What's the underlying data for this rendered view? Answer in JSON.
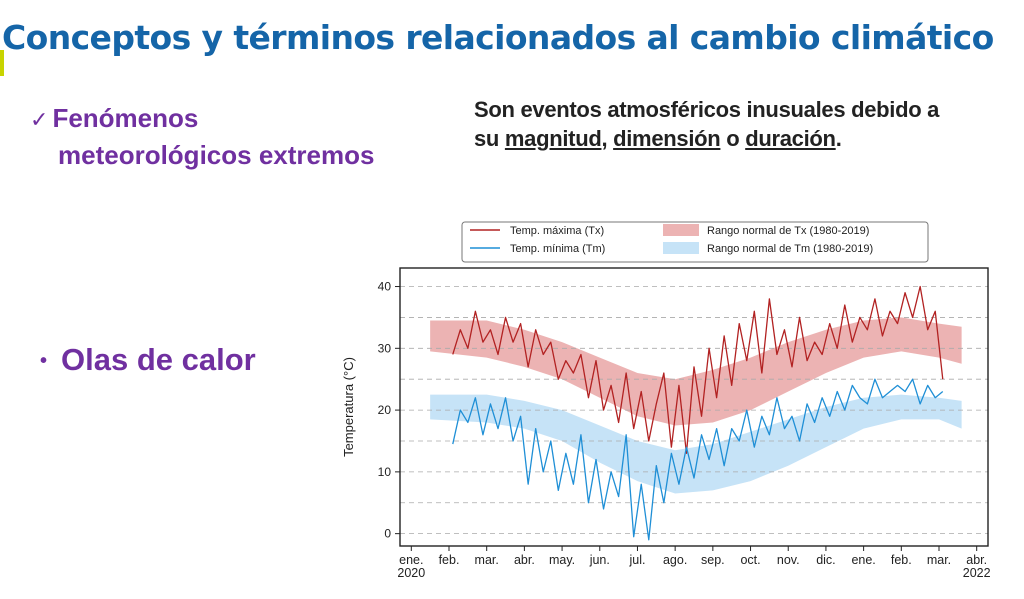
{
  "slide": {
    "title": "Conceptos y términos relacionados al cambio climático",
    "bullet1_check": "✓",
    "bullet1_line1": "Fenómenos",
    "bullet1_line2": "meteorológicos extremos",
    "definition_p1": "Son eventos atmosféricos inusuales debido a su ",
    "definition_w1": "magnitud",
    "definition_p2": ", ",
    "definition_w2": "dimensión",
    "definition_p3": " o ",
    "definition_w3": "duración",
    "definition_p4": ".",
    "bullet2_dot": "•",
    "bullet2": "Olas de calor"
  },
  "colors": {
    "title": "#1565a8",
    "bullet": "#7030a0",
    "tx_line": "#b22222",
    "tm_line": "#1f8fd6",
    "tx_band": "#ecb3b3",
    "tm_band": "#c6e3f7"
  },
  "chart_data": {
    "type": "line",
    "ylabel": "Temperatura (°C)",
    "xlabel": "",
    "ylim": [
      -2,
      43
    ],
    "yticks": [
      0,
      10,
      20,
      30,
      40
    ],
    "grid": "horizontal dashed",
    "legend_position": "top",
    "x_ticks": [
      "ene.",
      "feb.",
      "mar.",
      "abr.",
      "may.",
      "jun.",
      "jul.",
      "ago.",
      "sep.",
      "oct.",
      "nov.",
      "dic.",
      "ene.",
      "feb.",
      "mar.",
      "abr."
    ],
    "x_year_labels": [
      {
        "tick": 0,
        "label": "2020"
      },
      {
        "tick": 15,
        "label": "2022"
      }
    ],
    "bands": [
      {
        "name": "Rango normal de Tx (1980-2019)",
        "color": "#ecb3b3",
        "month": [
          0.5,
          2,
          3,
          4,
          5,
          6,
          7,
          8,
          9,
          10,
          11,
          12,
          13,
          14,
          14.6
        ],
        "upper": [
          34.5,
          34.5,
          33,
          31,
          28.5,
          26,
          25,
          26.5,
          28.5,
          31,
          33,
          34.5,
          35,
          34,
          33.5
        ],
        "lower": [
          29.5,
          28.5,
          27,
          25,
          22,
          19,
          17.5,
          18,
          20,
          23,
          26,
          28.5,
          29.5,
          28.5,
          27.5
        ]
      },
      {
        "name": "Rango normal de Tm (1980-2019)",
        "color": "#c6e3f7",
        "month": [
          0.5,
          2,
          3,
          4,
          5,
          6,
          7,
          8,
          9,
          10,
          11,
          12,
          13,
          14,
          14.6
        ],
        "upper": [
          22.5,
          22.5,
          21.5,
          20,
          17.5,
          15,
          13.5,
          14.5,
          16.5,
          18.5,
          20.5,
          22,
          22.5,
          22,
          21.5
        ],
        "lower": [
          18.5,
          18,
          17,
          15,
          11.5,
          8.5,
          6.5,
          7,
          8.5,
          11,
          14,
          17,
          18.5,
          18.5,
          17
        ]
      }
    ],
    "series": [
      {
        "name": "Temp. máxima (Tx)",
        "color": "#b22222",
        "month": [
          1.1,
          1.3,
          1.5,
          1.7,
          1.9,
          2.1,
          2.3,
          2.5,
          2.7,
          2.9,
          3.1,
          3.3,
          3.5,
          3.7,
          3.9,
          4.1,
          4.3,
          4.5,
          4.7,
          4.9,
          5.1,
          5.3,
          5.5,
          5.7,
          5.9,
          6.1,
          6.3,
          6.5,
          6.7,
          6.9,
          7.1,
          7.3,
          7.5,
          7.7,
          7.9,
          8.1,
          8.3,
          8.5,
          8.7,
          8.9,
          9.1,
          9.3,
          9.5,
          9.7,
          9.9,
          10.1,
          10.3,
          10.5,
          10.7,
          10.9,
          11.1,
          11.3,
          11.5,
          11.7,
          11.9,
          12.1,
          12.3,
          12.5,
          12.7,
          12.9,
          13.1,
          13.3,
          13.5,
          13.7,
          13.9,
          14.1
        ],
        "values": [
          29,
          33,
          30,
          36,
          31,
          33,
          29,
          35,
          31,
          34,
          27,
          33,
          29,
          31,
          25,
          28,
          26,
          29,
          22,
          28,
          20,
          24,
          18,
          26,
          17,
          23,
          15,
          21,
          26,
          14,
          24,
          13,
          27,
          19,
          30,
          22,
          32,
          24,
          34,
          28,
          36,
          26,
          38,
          29,
          33,
          27,
          35,
          28,
          31,
          29,
          34,
          30,
          37,
          31,
          35,
          33,
          38,
          32,
          36,
          34,
          39,
          35,
          40,
          33,
          36,
          25
        ]
      },
      {
        "name": "Temp. mínima (Tm)",
        "color": "#1f8fd6",
        "month": [
          1.1,
          1.3,
          1.5,
          1.7,
          1.9,
          2.1,
          2.3,
          2.5,
          2.7,
          2.9,
          3.1,
          3.3,
          3.5,
          3.7,
          3.9,
          4.1,
          4.3,
          4.5,
          4.7,
          4.9,
          5.1,
          5.3,
          5.5,
          5.7,
          5.9,
          6.1,
          6.3,
          6.5,
          6.7,
          6.9,
          7.1,
          7.3,
          7.5,
          7.7,
          7.9,
          8.1,
          8.3,
          8.5,
          8.7,
          8.9,
          9.1,
          9.3,
          9.5,
          9.7,
          9.9,
          10.1,
          10.3,
          10.5,
          10.7,
          10.9,
          11.1,
          11.3,
          11.5,
          11.7,
          11.9,
          12.1,
          12.3,
          12.5,
          12.7,
          12.9,
          13.1,
          13.3,
          13.5,
          13.7,
          13.9,
          14.1
        ],
        "values": [
          14.5,
          20,
          18,
          22,
          16,
          21,
          17,
          22,
          15,
          19,
          8,
          17,
          10,
          15,
          7,
          13,
          8,
          16,
          5,
          12,
          4,
          10,
          6,
          16,
          -0.5,
          8,
          -1,
          11,
          5,
          13,
          8,
          14,
          9,
          16,
          12,
          17,
          11,
          17,
          15,
          20,
          14,
          19,
          16,
          22,
          17,
          19,
          15,
          21,
          18,
          22,
          19,
          23,
          20,
          24,
          22,
          21,
          25,
          22,
          23,
          24,
          23,
          25,
          21,
          24,
          22,
          23
        ]
      }
    ]
  }
}
